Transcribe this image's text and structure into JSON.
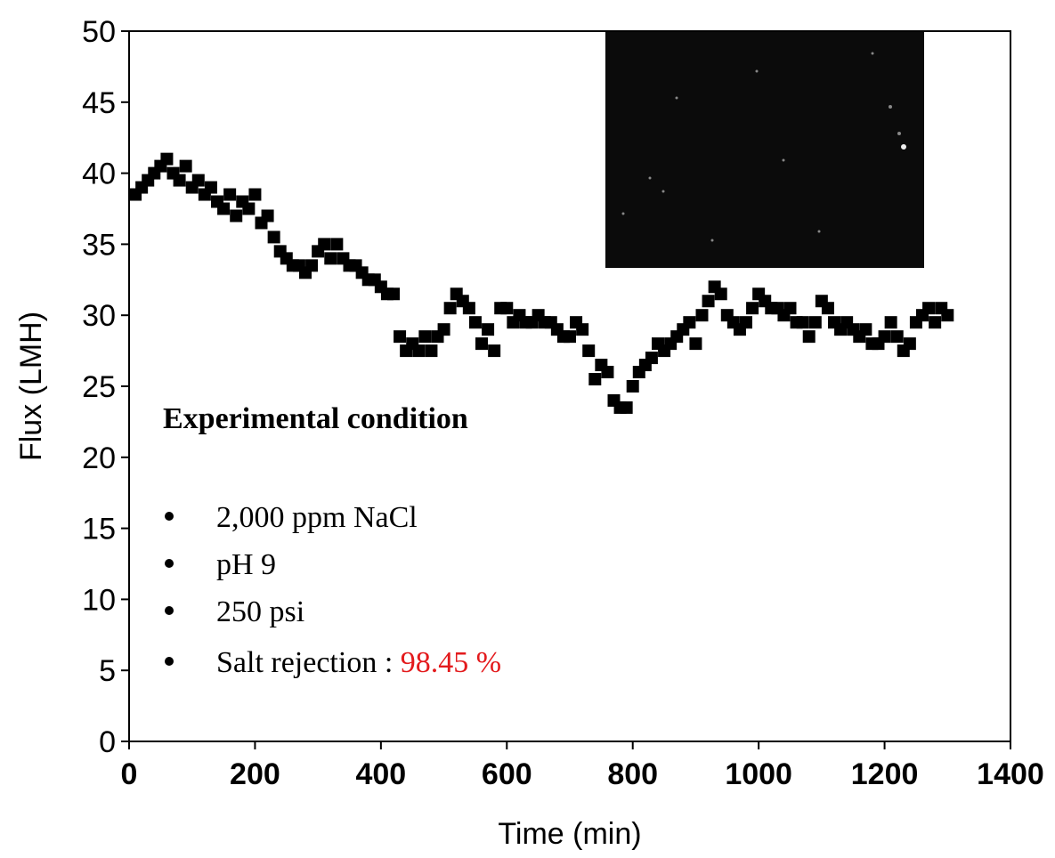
{
  "chart_data": {
    "type": "scatter",
    "xlabel": "Time (min)",
    "ylabel": "Flux (LMH)",
    "xlim": [
      0,
      1400
    ],
    "xticks": [
      0,
      200,
      400,
      600,
      800,
      1000,
      1200,
      1400
    ],
    "ylim": [
      0,
      50
    ],
    "yticks": [
      0,
      5,
      10,
      15,
      20,
      25,
      30,
      35,
      40,
      45,
      50
    ],
    "color": "#000000",
    "x": [
      10,
      20,
      30,
      40,
      50,
      60,
      70,
      80,
      90,
      100,
      110,
      120,
      130,
      140,
      150,
      160,
      170,
      180,
      190,
      200,
      210,
      220,
      230,
      240,
      250,
      260,
      270,
      280,
      290,
      300,
      310,
      320,
      330,
      340,
      350,
      360,
      370,
      380,
      390,
      400,
      410,
      420,
      430,
      440,
      450,
      460,
      470,
      480,
      490,
      500,
      510,
      520,
      530,
      540,
      550,
      560,
      570,
      580,
      590,
      600,
      610,
      620,
      630,
      640,
      650,
      660,
      670,
      680,
      690,
      700,
      710,
      720,
      730,
      740,
      750,
      760,
      770,
      780,
      790,
      800,
      810,
      820,
      830,
      840,
      850,
      860,
      870,
      880,
      890,
      900,
      910,
      920,
      930,
      940,
      950,
      960,
      970,
      980,
      990,
      1000,
      1010,
      1020,
      1030,
      1040,
      1050,
      1060,
      1070,
      1080,
      1090,
      1100,
      1110,
      1120,
      1130,
      1140,
      1150,
      1160,
      1170,
      1180,
      1190,
      1200,
      1210,
      1220,
      1230,
      1240,
      1250,
      1260,
      1270,
      1280,
      1290,
      1300
    ],
    "values": [
      38.5,
      39,
      39.5,
      40,
      40.5,
      41,
      40,
      39.5,
      40.5,
      39,
      39.5,
      38.5,
      39,
      38,
      37.5,
      38.5,
      37,
      38,
      37.5,
      38.5,
      36.5,
      37,
      35.5,
      34.5,
      34,
      33.5,
      33.5,
      33,
      33.5,
      34.5,
      35,
      34,
      35,
      34,
      33.5,
      33.5,
      33,
      32.5,
      32.5,
      32,
      31.5,
      31.5,
      28.5,
      27.5,
      28,
      27.5,
      28.5,
      27.5,
      28.5,
      29,
      30.5,
      31.5,
      31,
      30.5,
      29.5,
      28,
      29,
      27.5,
      30.5,
      30.5,
      29.5,
      30,
      29.5,
      29.5,
      30,
      29.5,
      29.5,
      29,
      28.5,
      28.5,
      29.5,
      29,
      27.5,
      25.5,
      26.5,
      26,
      24,
      23.5,
      23.5,
      25,
      26,
      26.5,
      27,
      28,
      27.5,
      28,
      28.5,
      29,
      29.5,
      28,
      30,
      31,
      32,
      31.5,
      30,
      29.5,
      29,
      29.5,
      30.5,
      31.5,
      31,
      30.5,
      30.5,
      30,
      30.5,
      29.5,
      29.5,
      28.5,
      29.5,
      31,
      30.5,
      29.5,
      29,
      29.5,
      29,
      28.5,
      29,
      28,
      28,
      28.5,
      29.5,
      28.5,
      27.5,
      28,
      29.5,
      30,
      30.5,
      29.5,
      30.5,
      30
    ],
    "annotations": {
      "heading": "Experimental condition",
      "items": [
        "2,000 ppm NaCl",
        "pH 9",
        "250 psi"
      ],
      "rejection_label": "Salt rejection :",
      "rejection_value": "98.45 %",
      "rejection_color": "#e31a1c"
    }
  }
}
